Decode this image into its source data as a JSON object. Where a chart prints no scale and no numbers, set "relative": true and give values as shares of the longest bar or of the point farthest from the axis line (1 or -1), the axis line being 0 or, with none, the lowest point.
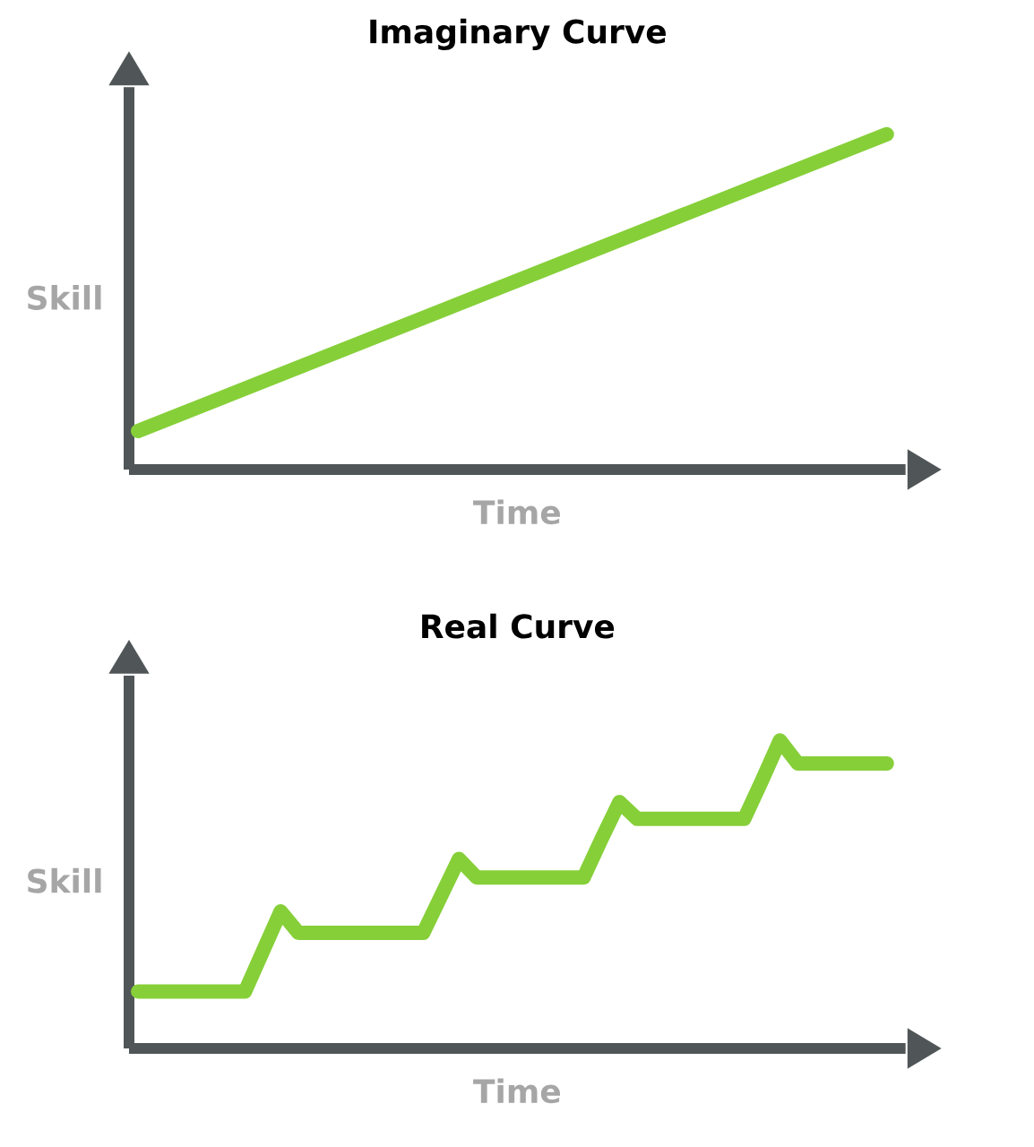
{
  "chart_data": [
    {
      "type": "line",
      "title": "Imaginary Curve",
      "xlabel": "Time",
      "ylabel": "Skill",
      "relative": true,
      "categories": [
        null,
        null
      ],
      "series": [
        {
          "color": "#86cf38",
          "values": [
            0.115,
            1
          ]
        }
      ]
    },
    {
      "type": "line",
      "title": "Real Curve",
      "xlabel": "Time",
      "ylabel": "Skill",
      "relative": true,
      "categories": [
        null,
        null,
        null,
        null,
        null,
        null,
        null,
        null,
        null,
        null,
        null,
        null,
        null,
        null,
        null,
        null,
        null,
        null,
        null,
        null,
        null,
        null,
        null,
        null,
        null,
        null,
        null,
        null,
        null,
        null,
        null,
        null,
        null,
        null,
        null,
        null,
        null,
        null,
        null,
        null,
        null,
        null,
        null
      ],
      "series": [
        {
          "color": "#86cf38",
          "values": [
            0.185,
            0.185,
            0.185,
            0.185,
            0.185,
            0.185,
            0.185,
            0.315,
            0.445,
            0.375,
            0.375,
            0.375,
            0.375,
            0.375,
            0.375,
            0.375,
            0.375,
            0.495,
            0.615,
            0.555,
            0.555,
            0.555,
            0.555,
            0.555,
            0.555,
            0.555,
            0.68,
            0.8,
            0.745,
            0.745,
            0.745,
            0.745,
            0.745,
            0.745,
            0.745,
            0.87,
            1,
            0.925,
            0.925,
            0.925,
            0.925,
            0.925,
            0.925
          ]
        }
      ]
    }
  ]
}
